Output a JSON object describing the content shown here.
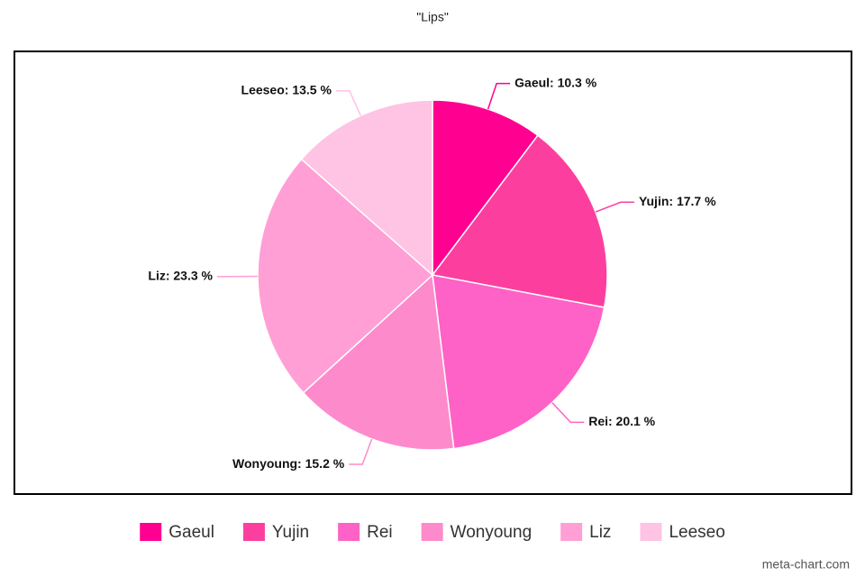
{
  "chart_data": {
    "type": "pie",
    "title": "\"Lips\"",
    "categories": [
      "Gaeul",
      "Yujin",
      "Rei",
      "Wonyoung",
      "Liz",
      "Leeseo"
    ],
    "values": [
      10.3,
      17.7,
      20.1,
      15.2,
      23.3,
      13.5
    ],
    "value_labels": [
      "Gaeul: 10.3 %",
      "Yujin: 17.7 %",
      "Rei: 20.1 %",
      "Wonyoung: 15.2 %",
      "Liz: 23.3 %",
      "Leeseo: 13.5 %"
    ],
    "colors": [
      "#ff0090",
      "#fc3f9f",
      "#fe62c6",
      "#fd8bcc",
      "#ff9fd5",
      "#ffc3e3"
    ],
    "legend": "bottom",
    "watermark": "meta-chart.com"
  }
}
